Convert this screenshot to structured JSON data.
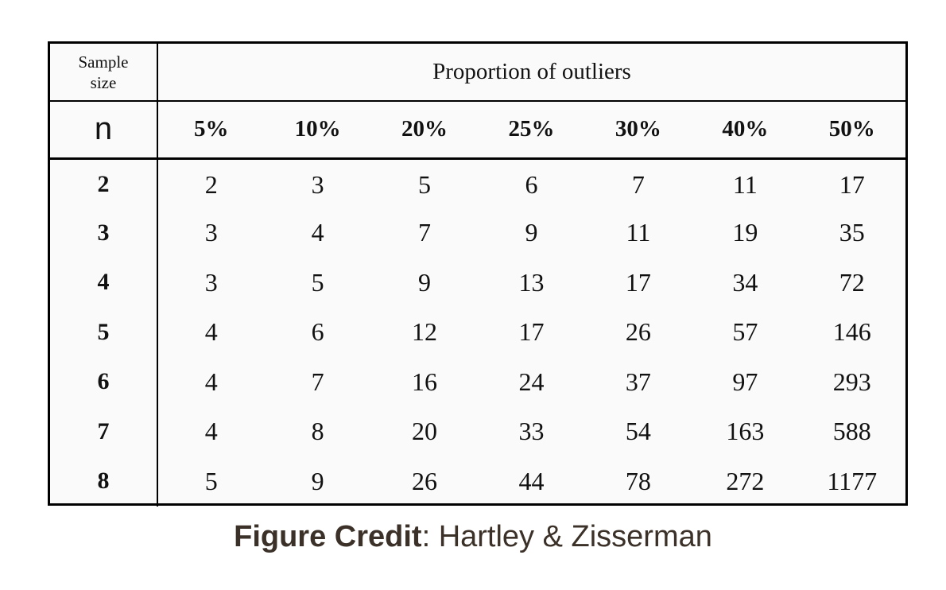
{
  "table": {
    "header": {
      "sample_size_label": [
        "Sample",
        "size"
      ],
      "proportion_title": "Proportion of outliers",
      "n_label": "n",
      "percentages": [
        "5%",
        "10%",
        "20%",
        "25%",
        "30%",
        "40%",
        "50%"
      ]
    },
    "rows": [
      {
        "n": "2",
        "values": [
          "2",
          "3",
          "5",
          "6",
          "7",
          "11",
          "17"
        ]
      },
      {
        "n": "3",
        "values": [
          "3",
          "4",
          "7",
          "9",
          "11",
          "19",
          "35"
        ]
      },
      {
        "n": "4",
        "values": [
          "3",
          "5",
          "9",
          "13",
          "17",
          "34",
          "72"
        ]
      },
      {
        "n": "5",
        "values": [
          "4",
          "6",
          "12",
          "17",
          "26",
          "57",
          "146"
        ]
      },
      {
        "n": "6",
        "values": [
          "4",
          "7",
          "16",
          "24",
          "37",
          "97",
          "293"
        ]
      },
      {
        "n": "7",
        "values": [
          "4",
          "8",
          "20",
          "33",
          "54",
          "163",
          "588"
        ]
      },
      {
        "n": "8",
        "values": [
          "5",
          "9",
          "26",
          "44",
          "78",
          "272",
          "1177"
        ]
      }
    ]
  },
  "caption": {
    "bold": "Figure Credit",
    "rest": ": Hartley & Zisserman"
  }
}
